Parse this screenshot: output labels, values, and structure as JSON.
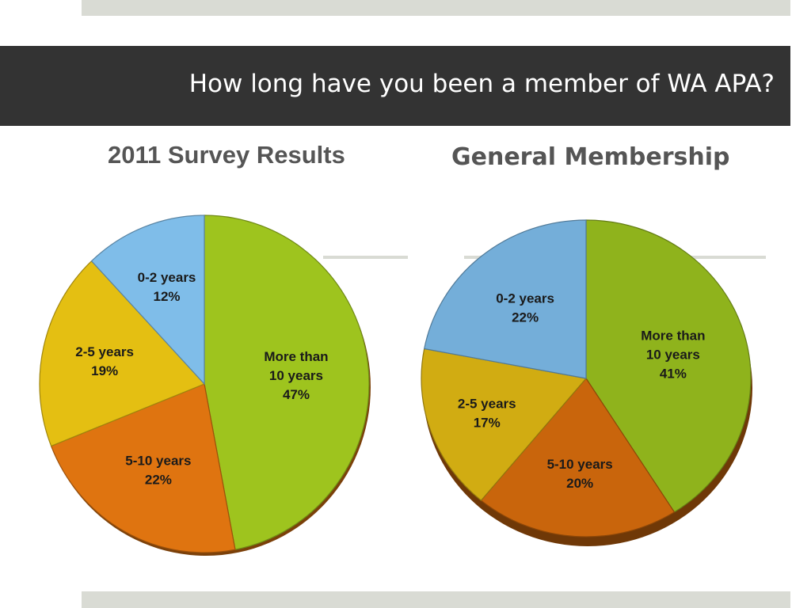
{
  "slide": {
    "title": "How long have you been a member of WA APA?"
  },
  "colors": {
    "title_bar": "#333333",
    "accent_strip": "#d9dbd4",
    "heading_text": "#555555"
  },
  "chart_data": [
    {
      "type": "pie",
      "title": "2011 Survey Results",
      "start_angle_deg": 0,
      "direction": "clockwise",
      "slices": [
        {
          "label": "More than 10 years",
          "label_lines": [
            "More than",
            "10 years"
          ],
          "value": 47,
          "value_label": "47%",
          "color": "#9ec41e"
        },
        {
          "label": "5-10 years",
          "label_lines": [
            "5-10 years"
          ],
          "value": 22,
          "value_label": "22%",
          "color": "#df7410"
        },
        {
          "label": "2-5 years",
          "label_lines": [
            "2-5 years"
          ],
          "value": 19,
          "value_label": "19%",
          "color": "#e4bf12"
        },
        {
          "label": "0-2 years",
          "label_lines": [
            "0-2 years"
          ],
          "value": 12,
          "value_label": "12%",
          "color": "#7fbde9"
        }
      ]
    },
    {
      "type": "pie",
      "title": "General Membership",
      "start_angle_deg": 0,
      "direction": "clockwise",
      "slices": [
        {
          "label": "More than 10 years",
          "label_lines": [
            "More than",
            "10 years"
          ],
          "value": 41,
          "value_label": "41%",
          "color": "#8fb31c"
        },
        {
          "label": "5-10 years",
          "label_lines": [
            "5-10 years"
          ],
          "value": 20,
          "value_label": "20%",
          "color": "#c9650c"
        },
        {
          "label": "2-5 years",
          "label_lines": [
            "2-5 years"
          ],
          "value": 17,
          "value_label": "17%",
          "color": "#d1ac12"
        },
        {
          "label": "0-2 years",
          "label_lines": [
            "0-2 years"
          ],
          "value": 22,
          "value_label": "22%",
          "color": "#74aed9"
        }
      ]
    }
  ]
}
